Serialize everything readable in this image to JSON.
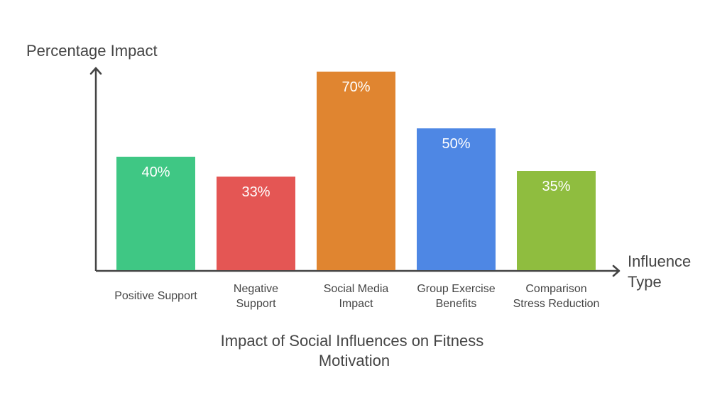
{
  "chart_data": {
    "type": "bar",
    "title": "Impact of Social Influences on Fitness Motivation",
    "ylabel": "Percentage Impact",
    "xlabel": "Influence Type",
    "categories": [
      "Positive Support",
      "Negative Support",
      "Social Media Impact",
      "Group Exercise Benefits",
      "Comparison Stress Reduction"
    ],
    "values": [
      40,
      33,
      70,
      50,
      35
    ],
    "value_labels": [
      "40%",
      "33%",
      "70%",
      "50%",
      "35%"
    ],
    "colors": [
      "#3fc784",
      "#e45654",
      "#e08530",
      "#4e87e4",
      "#8fbd3f"
    ],
    "ylim": [
      0,
      70
    ],
    "grid": false,
    "legend": "none"
  }
}
